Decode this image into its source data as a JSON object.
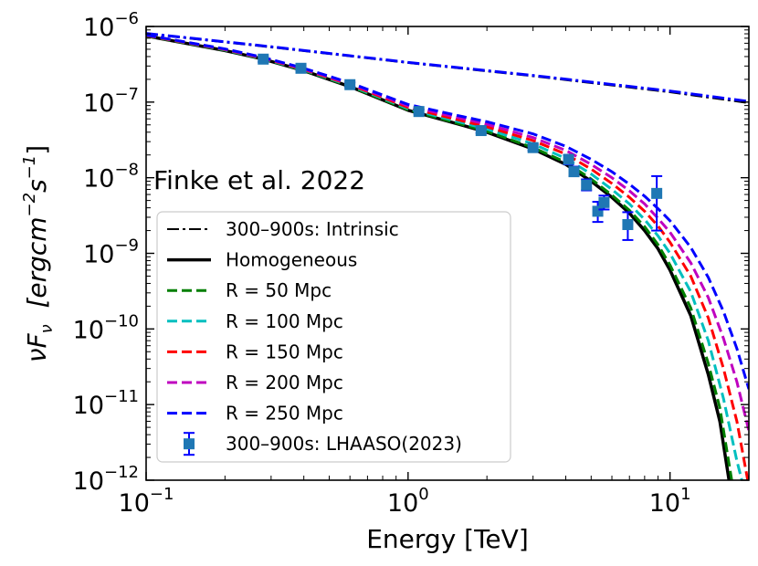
{
  "chart_data": {
    "type": "line",
    "title": "",
    "annotation": "Finke et al. 2022",
    "xlabel": "Energy [TeV]",
    "ylabel_parts": [
      "νF",
      "ν",
      "  [ergcm",
      "−2",
      "s",
      "−1",
      "]"
    ],
    "xscale": "log",
    "yscale": "log",
    "xlim": [
      0.1,
      20
    ],
    "ylim": [
      1e-12,
      1e-06
    ],
    "x_ticks": [
      {
        "value": 0.1,
        "base": "10",
        "exp": "−1"
      },
      {
        "value": 1,
        "base": "10",
        "exp": "0"
      },
      {
        "value": 10,
        "base": "10",
        "exp": "1"
      }
    ],
    "y_ticks": [
      {
        "value": 1e-12,
        "base": "10",
        "exp": "−12"
      },
      {
        "value": 1e-11,
        "base": "10",
        "exp": "−11"
      },
      {
        "value": 1e-10,
        "base": "10",
        "exp": "−10"
      },
      {
        "value": 1e-09,
        "base": "10",
        "exp": "−9"
      },
      {
        "value": 1e-08,
        "base": "10",
        "exp": "−8"
      },
      {
        "value": 1e-07,
        "base": "10",
        "exp": "−7"
      },
      {
        "value": 1e-06,
        "base": "10",
        "exp": "−6"
      }
    ],
    "series": [
      {
        "name": "300–900s: Intrinsic",
        "color": "#000000",
        "style": "dashdot",
        "width": 2,
        "points": [
          [
            0.1,
            8e-07
          ],
          [
            0.3,
            5.3e-07
          ],
          [
            1.0,
            3.3e-07
          ],
          [
            3.0,
            2.2e-07
          ],
          [
            10.0,
            1.35e-07
          ],
          [
            20.0,
            9.7e-08
          ]
        ]
      },
      {
        "name": "Homogeneous",
        "color": "#000000",
        "style": "solid",
        "width": 3.5,
        "points": [
          [
            0.1,
            7.5e-07
          ],
          [
            0.2,
            4.8e-07
          ],
          [
            0.28,
            3.7e-07
          ],
          [
            0.4,
            2.6e-07
          ],
          [
            0.6,
            1.6e-07
          ],
          [
            1.0,
            7.8e-08
          ],
          [
            1.5,
            5.3e-08
          ],
          [
            2.0,
            4e-08
          ],
          [
            3.0,
            2.4e-08
          ],
          [
            4.0,
            1.5e-08
          ],
          [
            5.0,
            9e-09
          ],
          [
            6.0,
            5.5e-09
          ],
          [
            7.0,
            3.4e-09
          ],
          [
            8.0,
            2e-09
          ],
          [
            9.0,
            1.15e-09
          ],
          [
            10.0,
            6e-10
          ],
          [
            12.0,
            1.5e-10
          ],
          [
            14.0,
            2.5e-11
          ],
          [
            15.5,
            6e-12
          ],
          [
            16.8,
            1e-12
          ]
        ]
      },
      {
        "name": "R = 50 Mpc",
        "color": "#007f00",
        "style": "dashed",
        "width": 3,
        "points": [
          [
            0.1,
            7.5e-07
          ],
          [
            0.2,
            4.85e-07
          ],
          [
            0.28,
            3.72e-07
          ],
          [
            0.4,
            2.62e-07
          ],
          [
            0.6,
            1.62e-07
          ],
          [
            1.0,
            7.9e-08
          ],
          [
            1.5,
            5.4e-08
          ],
          [
            2.0,
            4.1e-08
          ],
          [
            3.0,
            2.5e-08
          ],
          [
            4.0,
            1.6e-08
          ],
          [
            5.0,
            9.6e-09
          ],
          [
            6.0,
            5.9e-09
          ],
          [
            7.0,
            3.7e-09
          ],
          [
            8.0,
            2.25e-09
          ],
          [
            9.0,
            1.3e-09
          ],
          [
            10.0,
            7e-10
          ],
          [
            12.0,
            1.9e-10
          ],
          [
            14.0,
            3.5e-11
          ],
          [
            15.5,
            9e-12
          ],
          [
            17.2,
            1e-12
          ]
        ]
      },
      {
        "name": "R = 100 Mpc",
        "color": "#00bfbf",
        "style": "dashed",
        "width": 3,
        "points": [
          [
            0.1,
            7.6e-07
          ],
          [
            0.2,
            4.9e-07
          ],
          [
            0.28,
            3.75e-07
          ],
          [
            0.4,
            2.66e-07
          ],
          [
            0.6,
            1.66e-07
          ],
          [
            1.0,
            8.2e-08
          ],
          [
            1.5,
            5.7e-08
          ],
          [
            2.0,
            4.4e-08
          ],
          [
            3.0,
            2.8e-08
          ],
          [
            4.0,
            1.8e-08
          ],
          [
            5.0,
            1.12e-08
          ],
          [
            6.0,
            7e-09
          ],
          [
            7.0,
            4.5e-09
          ],
          [
            8.0,
            2.8e-09
          ],
          [
            9.0,
            1.7e-09
          ],
          [
            10.0,
            1e-09
          ],
          [
            12.0,
            3.1e-10
          ],
          [
            14.0,
            7e-11
          ],
          [
            16.0,
            1.2e-11
          ],
          [
            18.0,
            1.8e-12
          ],
          [
            18.8,
            1e-12
          ]
        ]
      },
      {
        "name": "R = 150 Mpc",
        "color": "#ff0000",
        "style": "dashed",
        "width": 3,
        "points": [
          [
            0.1,
            7.6e-07
          ],
          [
            0.2,
            4.95e-07
          ],
          [
            0.28,
            3.8e-07
          ],
          [
            0.4,
            2.7e-07
          ],
          [
            0.6,
            1.7e-07
          ],
          [
            1.0,
            8.5e-08
          ],
          [
            1.5,
            6e-08
          ],
          [
            2.0,
            4.7e-08
          ],
          [
            3.0,
            3.1e-08
          ],
          [
            4.0,
            2.05e-08
          ],
          [
            5.0,
            1.3e-08
          ],
          [
            6.0,
            8.4e-09
          ],
          [
            7.0,
            5.5e-09
          ],
          [
            8.0,
            3.6e-09
          ],
          [
            9.0,
            2.3e-09
          ],
          [
            10.0,
            1.4e-09
          ],
          [
            12.0,
            5e-10
          ],
          [
            14.0,
            1.4e-10
          ],
          [
            16.0,
            3e-11
          ],
          [
            18.0,
            6e-12
          ],
          [
            19.8,
            1e-12
          ]
        ]
      },
      {
        "name": "R = 200 Mpc",
        "color": "#bf00bf",
        "style": "dashed",
        "width": 3,
        "points": [
          [
            0.1,
            7.7e-07
          ],
          [
            0.2,
            5e-07
          ],
          [
            0.28,
            3.85e-07
          ],
          [
            0.4,
            2.75e-07
          ],
          [
            0.6,
            1.75e-07
          ],
          [
            1.0,
            8.9e-08
          ],
          [
            1.5,
            6.4e-08
          ],
          [
            2.0,
            5.1e-08
          ],
          [
            3.0,
            3.4e-08
          ],
          [
            4.0,
            2.3e-08
          ],
          [
            5.0,
            1.5e-08
          ],
          [
            6.0,
            1e-08
          ],
          [
            7.0,
            6.7e-09
          ],
          [
            8.0,
            4.5e-09
          ],
          [
            9.0,
            2.9e-09
          ],
          [
            10.0,
            1.9e-09
          ],
          [
            12.0,
            7.5e-10
          ],
          [
            14.0,
            2.6e-10
          ],
          [
            16.0,
            7.5e-11
          ],
          [
            18.0,
            2e-11
          ],
          [
            20.0,
            4.5e-12
          ]
        ]
      },
      {
        "name": "R = 250 Mpc",
        "color": "#0000ff",
        "style": "dashed",
        "width": 3,
        "points": [
          [
            0.1,
            7.7e-07
          ],
          [
            0.2,
            5.05e-07
          ],
          [
            0.28,
            3.9e-07
          ],
          [
            0.4,
            2.8e-07
          ],
          [
            0.6,
            1.8e-07
          ],
          [
            1.0,
            9.3e-08
          ],
          [
            1.5,
            6.8e-08
          ],
          [
            2.0,
            5.5e-08
          ],
          [
            3.0,
            3.8e-08
          ],
          [
            4.0,
            2.6e-08
          ],
          [
            5.0,
            1.75e-08
          ],
          [
            6.0,
            1.2e-08
          ],
          [
            7.0,
            8.2e-09
          ],
          [
            8.0,
            5.7e-09
          ],
          [
            9.0,
            3.9e-09
          ],
          [
            10.0,
            2.7e-09
          ],
          [
            12.0,
            1.2e-09
          ],
          [
            14.0,
            4.8e-10
          ],
          [
            16.0,
            1.7e-10
          ],
          [
            18.0,
            5.5e-11
          ],
          [
            20.0,
            1.6e-11
          ]
        ]
      },
      {
        "name": "R = 250 Mpc (intrinsic)",
        "legend": false,
        "color": "#0000ff",
        "style": "dashdot",
        "width": 3,
        "points": [
          [
            0.1,
            8.1e-07
          ],
          [
            0.3,
            5.4e-07
          ],
          [
            1.0,
            3.35e-07
          ],
          [
            3.0,
            2.25e-07
          ],
          [
            10.0,
            1.4e-07
          ],
          [
            20.0,
            1.02e-07
          ]
        ]
      }
    ],
    "data_points": {
      "name": "300–900s: LHAASO(2023)",
      "marker_color": "#1f77b4",
      "errorbar_color": "#0000ff",
      "points": [
        {
          "x": 0.28,
          "y": 3.7e-07,
          "err_low": 3.4e-07,
          "err_high": 4e-07
        },
        {
          "x": 0.39,
          "y": 2.8e-07,
          "err_low": 2.6e-07,
          "err_high": 3e-07
        },
        {
          "x": 0.6,
          "y": 1.7e-07,
          "err_low": 1.58e-07,
          "err_high": 1.82e-07
        },
        {
          "x": 1.1,
          "y": 7.5e-08,
          "err_low": 7e-08,
          "err_high": 8e-08
        },
        {
          "x": 1.9,
          "y": 4.2e-08,
          "err_low": 3.9e-08,
          "err_high": 4.5e-08
        },
        {
          "x": 3.0,
          "y": 2.5e-08,
          "err_low": 2.3e-08,
          "err_high": 2.75e-08
        },
        {
          "x": 4.1,
          "y": 1.75e-08,
          "err_low": 1.5e-08,
          "err_high": 2e-08
        },
        {
          "x": 4.3,
          "y": 1.2e-08,
          "err_low": 1.05e-08,
          "err_high": 1.4e-08
        },
        {
          "x": 4.8,
          "y": 8e-09,
          "err_low": 6.8e-09,
          "err_high": 9.5e-09
        },
        {
          "x": 5.3,
          "y": 3.6e-09,
          "err_low": 2.6e-09,
          "err_high": 4.8e-09
        },
        {
          "x": 5.6,
          "y": 4.7e-09,
          "err_low": 3.8e-09,
          "err_high": 5.8e-09
        },
        {
          "x": 6.9,
          "y": 2.4e-09,
          "err_low": 1.5e-09,
          "err_high": 3.5e-09
        },
        {
          "x": 8.9,
          "y": 6.2e-09,
          "err_low": 2e-09,
          "err_high": 1.05e-08
        }
      ]
    },
    "legend": {
      "position": "lower-left",
      "entries": [
        {
          "label": "300–900s: Intrinsic",
          "color": "#000000",
          "style": "dashdot",
          "width": 2
        },
        {
          "label": "Homogeneous",
          "color": "#000000",
          "style": "solid",
          "width": 3.5
        },
        {
          "label": "R = 50 Mpc",
          "color": "#007f00",
          "style": "dashed",
          "width": 3
        },
        {
          "label": "R = 100 Mpc",
          "color": "#00bfbf",
          "style": "dashed",
          "width": 3
        },
        {
          "label": "R = 150 Mpc",
          "color": "#ff0000",
          "style": "dashed",
          "width": 3
        },
        {
          "label": "R = 200 Mpc",
          "color": "#bf00bf",
          "style": "dashed",
          "width": 3
        },
        {
          "label": "R = 250 Mpc",
          "color": "#0000ff",
          "style": "dashed",
          "width": 3
        },
        {
          "label": "300–900s: LHAASO(2023)",
          "color": "#1f77b4",
          "style": "marker-errorbar",
          "width": 2
        }
      ]
    }
  }
}
